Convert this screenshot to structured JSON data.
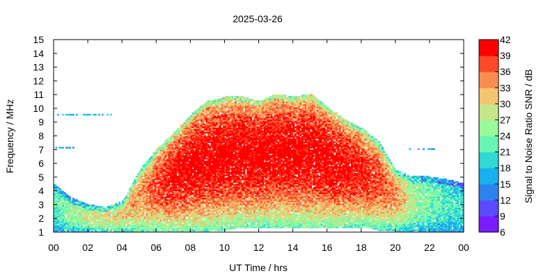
{
  "chart_data": {
    "type": "heatmap",
    "title": "2025-03-26",
    "xlabel": "UT Time / hrs",
    "ylabel": "Frequency / MHz",
    "colorbar_label": "Signal to Noise Ratio SNR / dB",
    "x_ticks": [
      "00",
      "02",
      "04",
      "06",
      "08",
      "10",
      "12",
      "14",
      "16",
      "18",
      "20",
      "22",
      "00"
    ],
    "x_range": [
      0,
      24
    ],
    "y_ticks": [
      "1",
      "2",
      "3",
      "4",
      "5",
      "6",
      "7",
      "8",
      "9",
      "10",
      "11",
      "12",
      "13",
      "14",
      "15"
    ],
    "y_range": [
      1,
      15
    ],
    "colorbar_ticks": [
      "6",
      "9",
      "12",
      "15",
      "18",
      "21",
      "24",
      "27",
      "30",
      "33",
      "36",
      "39",
      "42"
    ],
    "colorbar_range": [
      6,
      42
    ],
    "colorbar_colors": [
      "#7a1cff",
      "#5a4bff",
      "#2b84ee",
      "#16b2ee",
      "#2fd9d6",
      "#68f5b4",
      "#99fa99",
      "#c6e68a",
      "#f5c46f",
      "#fa8c52",
      "#ff4a2a",
      "#ff0000"
    ],
    "snr_envelope": [
      {
        "t": 0,
        "f_min": 1,
        "f_max": 4.5,
        "snr_peak": 22
      },
      {
        "t": 1,
        "f_min": 1,
        "f_max": 3.5,
        "snr_peak": 26
      },
      {
        "t": 2,
        "f_min": 1,
        "f_max": 3.0,
        "snr_peak": 28
      },
      {
        "t": 3,
        "f_min": 1,
        "f_max": 2.8,
        "snr_peak": 30
      },
      {
        "t": 4,
        "f_min": 1,
        "f_max": 3.2,
        "snr_peak": 31
      },
      {
        "t": 5,
        "f_min": 1,
        "f_max": 5.5,
        "snr_peak": 34
      },
      {
        "t": 6,
        "f_min": 1,
        "f_max": 7.0,
        "snr_peak": 38
      },
      {
        "t": 7,
        "f_min": 1,
        "f_max": 8.2,
        "snr_peak": 41
      },
      {
        "t": 8,
        "f_min": 1.2,
        "f_max": 9.5,
        "snr_peak": 42
      },
      {
        "t": 9,
        "f_min": 1.2,
        "f_max": 10.5,
        "snr_peak": 42
      },
      {
        "t": 10,
        "f_min": 1.3,
        "f_max": 10.8,
        "snr_peak": 42
      },
      {
        "t": 11,
        "f_min": 1.5,
        "f_max": 10.8,
        "snr_peak": 42
      },
      {
        "t": 12,
        "f_min": 1.5,
        "f_max": 10.5,
        "snr_peak": 42
      },
      {
        "t": 13,
        "f_min": 1.5,
        "f_max": 11.0,
        "snr_peak": 42
      },
      {
        "t": 14,
        "f_min": 1.5,
        "f_max": 10.8,
        "snr_peak": 42
      },
      {
        "t": 15,
        "f_min": 1.5,
        "f_max": 11.0,
        "snr_peak": 42
      },
      {
        "t": 16,
        "f_min": 1.5,
        "f_max": 10.0,
        "snr_peak": 42
      },
      {
        "t": 17,
        "f_min": 1.5,
        "f_max": 9.2,
        "snr_peak": 41
      },
      {
        "t": 18,
        "f_min": 1.5,
        "f_max": 8.5,
        "snr_peak": 40
      },
      {
        "t": 19,
        "f_min": 1.3,
        "f_max": 7.5,
        "snr_peak": 38
      },
      {
        "t": 20,
        "f_min": 1.2,
        "f_max": 5.5,
        "snr_peak": 34
      },
      {
        "t": 21,
        "f_min": 1.0,
        "f_max": 5.0,
        "snr_peak": 27
      },
      {
        "t": 22,
        "f_min": 1.0,
        "f_max": 5.0,
        "snr_peak": 24
      },
      {
        "t": 23,
        "f_min": 1.0,
        "f_max": 4.8,
        "snr_peak": 22
      },
      {
        "t": 24,
        "f_min": 1.0,
        "f_max": 4.5,
        "snr_peak": 20
      }
    ],
    "scattered_bands": [
      {
        "t_start": 0.2,
        "t_end": 3.4,
        "f": 9.5,
        "snr": 18
      },
      {
        "t_start": 0.1,
        "t_end": 1.2,
        "f": 7.1,
        "snr": 16
      },
      {
        "t_start": 20.8,
        "t_end": 22.5,
        "f": 7.0,
        "snr": 16
      }
    ]
  }
}
